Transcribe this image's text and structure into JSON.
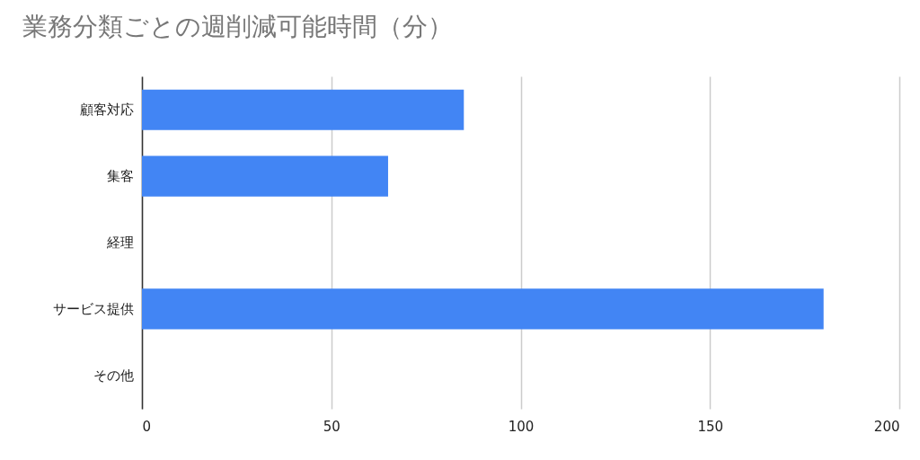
{
  "chart_data": {
    "type": "bar",
    "orientation": "horizontal",
    "title": "業務分類ごとの週削減可能時間（分）",
    "categories": [
      "顧客対応",
      "集客",
      "経理",
      "サービス提供",
      "その他"
    ],
    "values": [
      85,
      65,
      0,
      180,
      0
    ],
    "color": "#4285f4",
    "xlim": [
      0,
      200
    ],
    "xticks": [
      0,
      50,
      100,
      150,
      200
    ],
    "grid": "x"
  }
}
